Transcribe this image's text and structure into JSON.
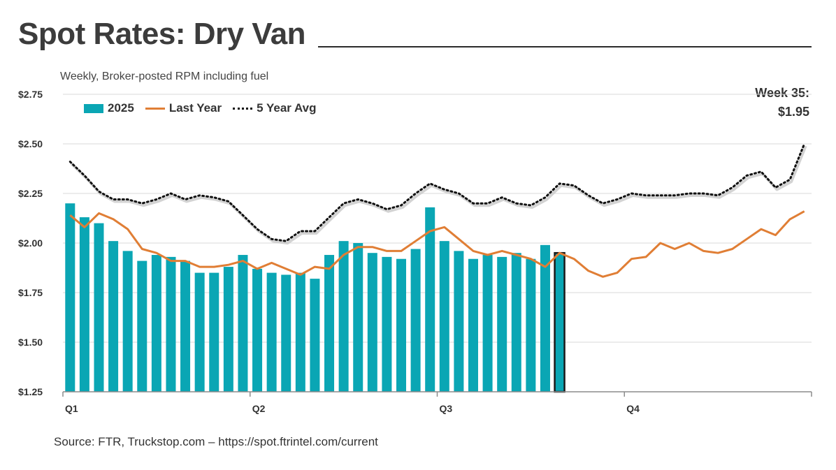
{
  "title": "Spot Rates: Dry Van",
  "subtitle": "Weekly, Broker-posted RPM including fuel",
  "source": "Source: FTR, Truckstop.com – https://spot.ftrintel.com/current",
  "callout": {
    "line1": "Week 35:",
    "line2": "$1.95"
  },
  "legend": {
    "bar": "2025",
    "line": "Last Year",
    "dotted": "5 Year Avg"
  },
  "colors": {
    "bar": "#0aa6b4",
    "line": "#e07e35",
    "dotted": "#111111",
    "highlight_outline": "#1a1a1a"
  },
  "chart_data": {
    "type": "bar",
    "y_axis": {
      "min": 1.25,
      "max": 2.75,
      "ticks": [
        1.25,
        1.5,
        1.75,
        2.0,
        2.25,
        2.5,
        2.75
      ],
      "tick_labels": [
        "$1.25",
        "$1.50",
        "$1.75",
        "$2.00",
        "$2.25",
        "$2.50",
        "$2.75"
      ]
    },
    "x_axis": {
      "weeks": 52,
      "quarter_labels": [
        "Q1",
        "Q2",
        "Q3",
        "Q4"
      ],
      "quarter_start_weeks": [
        1,
        14,
        27,
        40
      ]
    },
    "grid": "horizontal",
    "legend_position": "top-left",
    "series": [
      {
        "name": "2025",
        "type": "bar",
        "highlight_week": 35,
        "values": [
          2.2,
          2.13,
          2.1,
          2.01,
          1.96,
          1.91,
          1.94,
          1.93,
          1.91,
          1.85,
          1.85,
          1.88,
          1.94,
          1.87,
          1.85,
          1.84,
          1.85,
          1.82,
          1.94,
          2.01,
          2.0,
          1.95,
          1.93,
          1.92,
          1.97,
          2.18,
          2.01,
          1.96,
          1.92,
          1.94,
          1.93,
          1.95,
          1.92,
          1.99,
          1.95
        ]
      },
      {
        "name": "Last Year",
        "type": "line",
        "values": [
          2.14,
          2.08,
          2.15,
          2.12,
          2.07,
          1.97,
          1.95,
          1.91,
          1.91,
          1.88,
          1.88,
          1.89,
          1.91,
          1.87,
          1.9,
          1.87,
          1.84,
          1.88,
          1.87,
          1.94,
          1.98,
          1.98,
          1.96,
          1.96,
          2.01,
          2.06,
          2.08,
          2.02,
          1.96,
          1.94,
          1.96,
          1.94,
          1.92,
          1.88,
          1.95,
          1.92,
          1.86,
          1.83,
          1.85,
          1.92,
          1.93,
          2.0,
          1.97,
          2.0,
          1.96,
          1.95,
          1.97,
          2.02,
          2.07,
          2.04,
          2.12,
          2.16
        ]
      },
      {
        "name": "5 Year Avg",
        "type": "dotted-line",
        "values": [
          2.41,
          2.34,
          2.26,
          2.22,
          2.22,
          2.2,
          2.22,
          2.25,
          2.22,
          2.24,
          2.23,
          2.21,
          2.14,
          2.07,
          2.02,
          2.01,
          2.06,
          2.06,
          2.13,
          2.2,
          2.22,
          2.2,
          2.17,
          2.19,
          2.25,
          2.3,
          2.27,
          2.25,
          2.2,
          2.2,
          2.23,
          2.2,
          2.19,
          2.23,
          2.3,
          2.29,
          2.24,
          2.2,
          2.22,
          2.25,
          2.24,
          2.24,
          2.24,
          2.25,
          2.25,
          2.24,
          2.28,
          2.34,
          2.36,
          2.28,
          2.32,
          2.5
        ]
      }
    ]
  }
}
